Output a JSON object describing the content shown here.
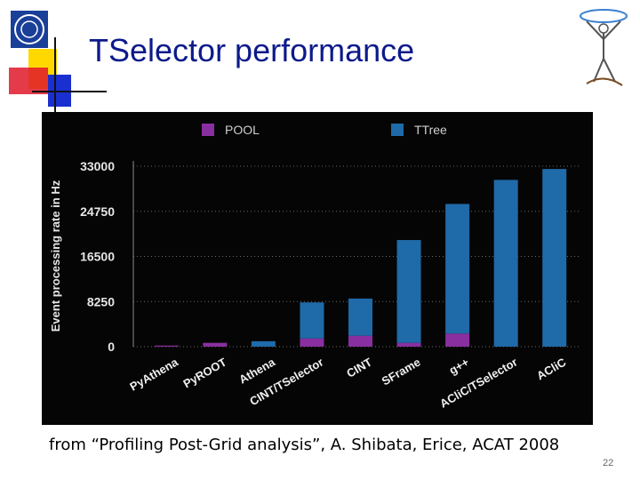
{
  "slide": {
    "title": "TSelector performance",
    "caption": "from “Profiling Post-Grid analysis”, A. Shibata, Erice, ACAT 2008",
    "page_number": "22",
    "logo_text": "CERN"
  },
  "colors": {
    "title": "#0c1a8a",
    "pool": "#8a2fa0",
    "ttree": "#1f6aa8",
    "chart_bg": "#050505",
    "deco_yellow": "#ffd800",
    "deco_red": "#e0182a",
    "deco_blue": "#1a2fd0"
  },
  "chart_data": {
    "type": "bar",
    "stacked": true,
    "ylabel": "Event processing rate in Hz",
    "xlabel": "",
    "ylim": [
      0,
      33000
    ],
    "yticks": [
      "0",
      "8250",
      "16500",
      "24750",
      "33000"
    ],
    "grid": true,
    "legend_position": "top",
    "categories": [
      "PyAthena",
      "PyROOT",
      "Athena",
      "CINT/TSelector",
      "CINT",
      "SFrame",
      "g++",
      "ACliC/TSelector",
      "ACliC"
    ],
    "series": [
      {
        "name": "POOL",
        "color": "#8a2fa0",
        "values": [
          200,
          700,
          0,
          1500,
          2000,
          700,
          2400,
          0,
          0
        ]
      },
      {
        "name": "TTree",
        "color": "#1f6aa8",
        "values": [
          0,
          0,
          1000,
          6600,
          6800,
          18800,
          23700,
          30500,
          32500
        ]
      }
    ]
  }
}
